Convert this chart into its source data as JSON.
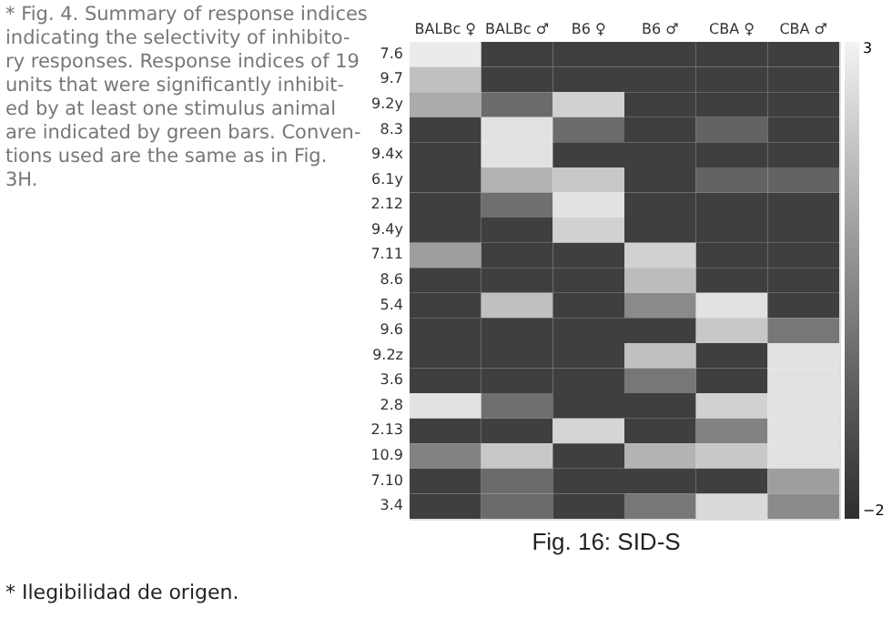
{
  "chart_data": {
    "type": "heatmap",
    "title": "Fig. 16: SID-S",
    "categories": [
      "BALBc ♀",
      "BALBc ♂",
      "B6 ♀",
      "B6 ♂",
      "CBA ♀",
      "CBA ♂"
    ],
    "y_categories": [
      "7.6",
      "9.7",
      "9.2y",
      "8.3",
      "9.4x",
      "6.1y",
      "2.12",
      "9.4y",
      "7.11",
      "8.6",
      "5.4",
      "9.6",
      "9.2z",
      "3.6",
      "2.8",
      "2.13",
      "10.9",
      "7.10",
      "3.4"
    ],
    "cells": [
      [
        2.8,
        -1.5,
        -1.5,
        -1.5,
        -1.5,
        -1.5
      ],
      [
        1.8,
        -1.5,
        -1.5,
        -1.5,
        -1.5,
        -1.5
      ],
      [
        1.3,
        -0.3,
        2.2,
        -1.5,
        -1.5,
        -1.5
      ],
      [
        -1.5,
        2.6,
        -0.3,
        -1.5,
        -0.5,
        -1.5
      ],
      [
        -1.5,
        2.6,
        -1.5,
        -1.5,
        -1.5,
        -1.5
      ],
      [
        -1.5,
        1.5,
        2.0,
        -1.5,
        -0.5,
        -0.5
      ],
      [
        -1.5,
        -0.2,
        2.6,
        -1.5,
        -1.5,
        -1.5
      ],
      [
        -1.5,
        -1.5,
        2.2,
        -1.5,
        -1.5,
        -1.5
      ],
      [
        1.0,
        -1.5,
        -1.5,
        2.2,
        -1.5,
        -1.5
      ],
      [
        -1.5,
        -1.5,
        -1.5,
        1.7,
        -1.5,
        -1.5
      ],
      [
        -1.5,
        1.8,
        -1.5,
        0.5,
        2.6,
        -1.5
      ],
      [
        -1.5,
        -1.5,
        -1.5,
        -1.5,
        2.0,
        0.0
      ],
      [
        -1.5,
        -1.5,
        -1.5,
        1.8,
        -1.5,
        2.6
      ],
      [
        -1.5,
        -1.5,
        -1.5,
        0.0,
        -1.5,
        2.6
      ],
      [
        2.6,
        -0.2,
        -1.5,
        -1.5,
        2.2,
        2.6
      ],
      [
        -1.5,
        -1.5,
        2.3,
        -1.5,
        0.3,
        2.6
      ],
      [
        0.3,
        2.0,
        -1.5,
        1.5,
        2.0,
        2.6
      ],
      [
        -1.5,
        -0.3,
        -1.5,
        -1.5,
        -1.5,
        1.0
      ],
      [
        -1.5,
        -0.3,
        -1.5,
        0.0,
        2.4,
        0.5
      ]
    ],
    "clim": [
      -2,
      3
    ],
    "cticks": [
      -2,
      3
    ],
    "annotations": [
      "* Fig. 4. Summary of response indices\nindicating the selectivity of inhibito-\nry responses. Response indices of 19\nunits that were significantly inhibit-\ned by at least one stimulus animal\nare indicated by green bars. Conven-\ntions used are the same as in Fig.\n3H.",
      "* Ilegibilidad de origen."
    ]
  }
}
